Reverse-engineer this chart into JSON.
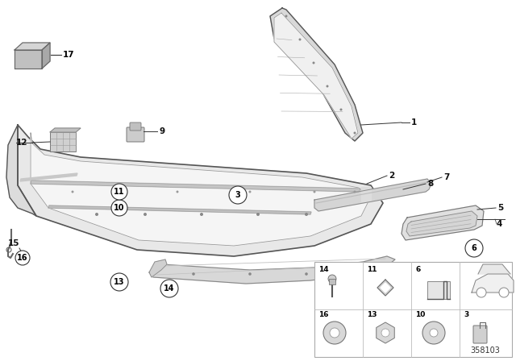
{
  "bg_color": "#ffffff",
  "diagram_number": "358103",
  "line_color": "#333333",
  "part_fill_light": "#f0f0f0",
  "part_fill_mid": "#d8d8d8",
  "part_fill_dark": "#b0b0b0",
  "part_edge": "#555555",
  "grid_line_color": "#bbbbbb"
}
